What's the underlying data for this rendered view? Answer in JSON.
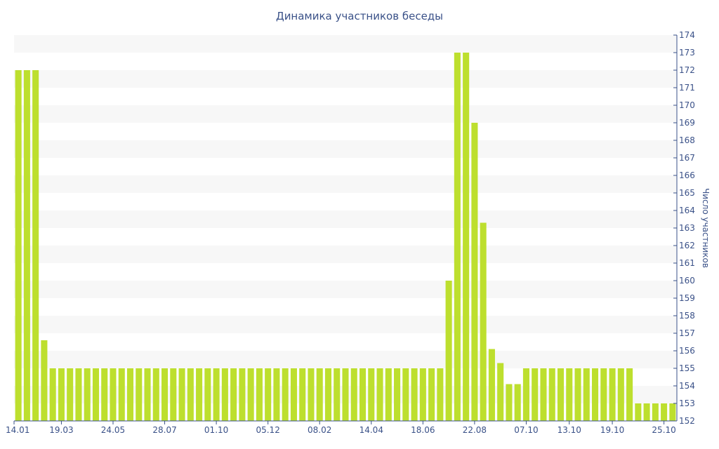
{
  "chart_data": {
    "type": "bar",
    "title": "Динамика участников беседы",
    "ylabel": "Число участников",
    "xlabel": "",
    "ylim": [
      152,
      174
    ],
    "y_ticks": [
      152,
      153,
      154,
      155,
      156,
      157,
      158,
      159,
      160,
      161,
      162,
      163,
      164,
      165,
      166,
      167,
      168,
      169,
      170,
      171,
      172,
      173,
      174
    ],
    "x_tick_labels": [
      "14.01",
      "19.03",
      "24.05",
      "28.07",
      "01.10",
      "05.12",
      "08.02",
      "14.04",
      "18.06",
      "22.08",
      "07.10",
      "13.10",
      "19.10",
      "25.10"
    ],
    "x_tick_bar_index": [
      0,
      5,
      11,
      17,
      23,
      29,
      35,
      41,
      47,
      53,
      59,
      64,
      69,
      75
    ],
    "values": [
      172,
      172,
      172,
      156.6,
      155,
      155,
      155,
      155,
      155,
      155,
      155,
      155,
      155,
      155,
      155,
      155,
      155,
      155,
      155,
      155,
      155,
      155,
      155,
      155,
      155,
      155,
      155,
      155,
      155,
      155,
      155,
      155,
      155,
      155,
      155,
      155,
      155,
      155,
      155,
      155,
      155,
      155,
      155,
      155,
      155,
      155,
      155,
      155,
      155,
      155,
      160,
      173,
      173,
      169,
      163.3,
      156.1,
      155.3,
      154.1,
      154.1,
      155,
      155,
      155,
      155,
      155,
      155,
      155,
      155,
      155,
      155,
      155,
      155,
      155,
      153,
      153,
      153,
      153,
      153
    ],
    "colors": {
      "bar": "#bddf2e",
      "stripe": "#f7f7f7",
      "text": "#3a5188",
      "axis": "#3a5188"
    },
    "grid": "horizontal stripes",
    "y_axis_position": "right"
  }
}
